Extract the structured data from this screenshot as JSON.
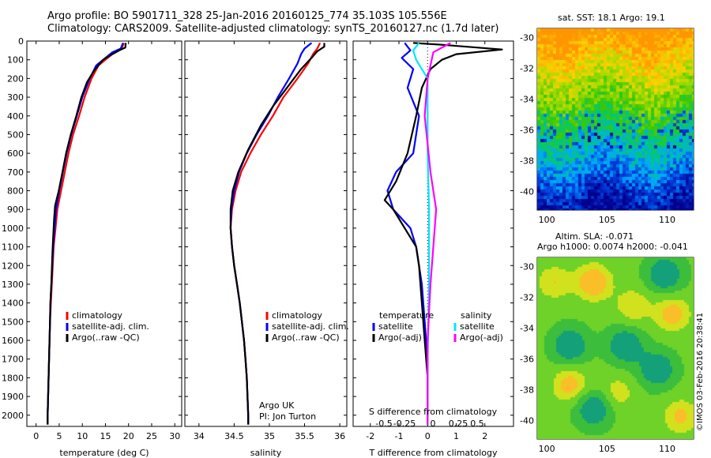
{
  "header": {
    "line1": "Argo profile: BO 5901711_328 25-Jan-2016 20160125_774 35.103S 105.556E",
    "line2": "Climatology: CARS2009. Satellite-adjusted climatology: synTS_20160127.nc (1.7d later)"
  },
  "colors": {
    "climatology": "#ff0000",
    "satellite": "#0000ff",
    "argo": "#000000",
    "sat_salinity": "#00e5ff",
    "argo_salinity": "#ff00ff"
  },
  "depth_axis": {
    "ticks": [
      0,
      100,
      200,
      300,
      400,
      500,
      600,
      700,
      800,
      900,
      1000,
      1100,
      1200,
      1300,
      1400,
      1500,
      1600,
      1700,
      1800,
      1900,
      2000
    ],
    "range": [
      0,
      2060
    ]
  },
  "temperature_panel": {
    "xlabel": "temperature (deg C)",
    "xticks": [
      0,
      5,
      10,
      15,
      20,
      25,
      30
    ],
    "xlim": [
      -2,
      31.5
    ],
    "legend": [
      "climatology",
      "satellite-adj. clim.",
      "Argo(..raw -QC)"
    ]
  },
  "salinity_panel": {
    "xlabel": "salinity",
    "xticks": [
      34,
      34.5,
      35,
      35.5,
      36
    ],
    "xtick_labels": [
      "34",
      "34.5",
      "35",
      "35.5",
      "36"
    ],
    "xlim": [
      33.8,
      36.1
    ],
    "legend": [
      "climatology",
      "satellite-adj. clim.",
      "Argo(..raw -QC)"
    ],
    "note_line1": "Argo UK",
    "note_line2": "PI: Jon Turton"
  },
  "difference_panel": {
    "xlabel": "T difference from climatology",
    "top_label": "S difference from climatology",
    "xticks": [
      -2,
      -1,
      0,
      1,
      2
    ],
    "xlim": [
      -2.6,
      3.0
    ],
    "s_ticks": [
      -0.5,
      -0.25,
      0,
      0.25,
      0.5
    ],
    "s_tick_labels": [
      "-0.5",
      "-0.25",
      "0",
      "0.25",
      "0.5"
    ],
    "legend_temperature_title": "temperature",
    "legend_salinity_title": "salinity",
    "legend_temperature": [
      "satellite",
      "Argo(-adj)"
    ],
    "legend_salinity": [
      "satellite",
      "Argo(-adj)"
    ]
  },
  "sst_map": {
    "title": "sat. SST: 18.1  Argo: 19.1",
    "yticks": [
      -30,
      -32,
      -34,
      -36,
      -38,
      -40
    ],
    "xticks": [
      100,
      105,
      110
    ],
    "lat_range": [
      -41.2,
      -29.4
    ],
    "lon_range": [
      99.2,
      112.2
    ]
  },
  "sla_map": {
    "title_line1": "Altim. SLA: -0.071",
    "title_line2": "Argo h1000: 0.0074 h2000: -0.041",
    "yticks": [
      -30,
      -32,
      -34,
      -36,
      -38,
      -40
    ],
    "xticks": [
      100,
      105,
      110
    ],
    "lat_range": [
      -41.2,
      -29.4
    ],
    "lon_range": [
      99.2,
      112.2
    ]
  },
  "credit": "©IMOS 03-Feb-2016 20:38:41",
  "chart_data": [
    {
      "type": "line",
      "xlabel": "temperature (deg C)",
      "ylim": [
        0,
        2060
      ],
      "xlim": [
        -2,
        31.5
      ],
      "series": [
        {
          "name": "climatology",
          "points": [
            [
              19.0,
              10
            ],
            [
              18.5,
              40
            ],
            [
              17.0,
              60
            ],
            [
              15.5,
              90
            ],
            [
              13.5,
              130
            ],
            [
              12.0,
              200
            ],
            [
              10.5,
              300
            ],
            [
              9.3,
              400
            ],
            [
              8.0,
              500
            ],
            [
              7.0,
              600
            ],
            [
              6.2,
              700
            ],
            [
              5.4,
              800
            ],
            [
              4.6,
              900
            ],
            [
              4.2,
              1000
            ],
            [
              3.8,
              1100
            ],
            [
              3.6,
              1200
            ],
            [
              3.4,
              1300
            ],
            [
              3.2,
              1400
            ],
            [
              3.0,
              1500
            ],
            [
              2.9,
              1600
            ],
            [
              2.8,
              1700
            ],
            [
              2.7,
              1800
            ],
            [
              2.6,
              1900
            ],
            [
              2.5,
              2000
            ],
            [
              2.5,
              2050
            ]
          ]
        },
        {
          "name": "satellite-adj. clim.",
          "points": [
            [
              18.8,
              10
            ],
            [
              18.3,
              40
            ],
            [
              16.5,
              60
            ],
            [
              15.0,
              90
            ],
            [
              13.0,
              130
            ],
            [
              11.6,
              200
            ],
            [
              10.0,
              300
            ],
            [
              8.8,
              400
            ],
            [
              7.6,
              500
            ],
            [
              6.6,
              600
            ],
            [
              5.8,
              700
            ],
            [
              5.0,
              800
            ],
            [
              4.3,
              900
            ],
            [
              4.0,
              1000
            ],
            [
              3.7,
              1100
            ],
            [
              3.5,
              1200
            ],
            [
              3.3,
              1300
            ],
            [
              3.1,
              1400
            ],
            [
              3.0,
              1500
            ],
            [
              2.9,
              1600
            ],
            [
              2.8,
              1700
            ],
            [
              2.7,
              1800
            ],
            [
              2.6,
              1900
            ],
            [
              2.5,
              2000
            ],
            [
              2.5,
              2050
            ]
          ]
        },
        {
          "name": "Argo(..raw -QC)",
          "points": [
            [
              19.4,
              10
            ],
            [
              19.3,
              35
            ],
            [
              18.0,
              50
            ],
            [
              16.5,
              70
            ],
            [
              14.5,
              100
            ],
            [
              12.5,
              160
            ],
            [
              11.0,
              220
            ],
            [
              9.8,
              300
            ],
            [
              8.7,
              400
            ],
            [
              7.5,
              500
            ],
            [
              6.5,
              600
            ],
            [
              5.7,
              700
            ],
            [
              4.9,
              800
            ],
            [
              4.1,
              880
            ],
            [
              3.9,
              950
            ],
            [
              3.7,
              1050
            ],
            [
              3.5,
              1150
            ],
            [
              3.3,
              1300
            ],
            [
              3.1,
              1400
            ],
            [
              3.0,
              1500
            ],
            [
              2.9,
              1600
            ],
            [
              2.8,
              1700
            ],
            [
              2.7,
              1800
            ],
            [
              2.6,
              1900
            ],
            [
              2.5,
              2000
            ],
            [
              2.5,
              2050
            ]
          ]
        }
      ]
    },
    {
      "type": "line",
      "xlabel": "salinity",
      "ylim": [
        0,
        2060
      ],
      "xlim": [
        33.8,
        36.1
      ],
      "series": [
        {
          "name": "climatology",
          "points": [
            [
              35.72,
              10
            ],
            [
              35.68,
              40
            ],
            [
              35.62,
              70
            ],
            [
              35.55,
              120
            ],
            [
              35.4,
              200
            ],
            [
              35.2,
              300
            ],
            [
              35.05,
              400
            ],
            [
              34.88,
              500
            ],
            [
              34.73,
              600
            ],
            [
              34.6,
              700
            ],
            [
              34.52,
              800
            ],
            [
              34.47,
              900
            ],
            [
              34.45,
              1000
            ],
            [
              34.47,
              1100
            ],
            [
              34.5,
              1200
            ],
            [
              34.54,
              1300
            ],
            [
              34.58,
              1400
            ],
            [
              34.61,
              1500
            ],
            [
              34.64,
              1600
            ],
            [
              34.66,
              1700
            ],
            [
              34.68,
              1800
            ],
            [
              34.69,
              1900
            ],
            [
              34.7,
              2000
            ],
            [
              34.7,
              2050
            ]
          ]
        },
        {
          "name": "satellite-adj. clim.",
          "points": [
            [
              35.6,
              10
            ],
            [
              35.5,
              40
            ],
            [
              35.45,
              70
            ],
            [
              35.4,
              120
            ],
            [
              35.28,
              200
            ],
            [
              35.12,
              300
            ],
            [
              34.98,
              400
            ],
            [
              34.82,
              500
            ],
            [
              34.68,
              600
            ],
            [
              34.57,
              700
            ],
            [
              34.5,
              800
            ],
            [
              34.46,
              900
            ],
            [
              34.45,
              1000
            ],
            [
              34.47,
              1100
            ],
            [
              34.5,
              1200
            ],
            [
              34.54,
              1300
            ],
            [
              34.58,
              1400
            ],
            [
              34.61,
              1500
            ],
            [
              34.64,
              1600
            ],
            [
              34.66,
              1700
            ],
            [
              34.68,
              1800
            ],
            [
              34.69,
              1900
            ],
            [
              34.7,
              2000
            ],
            [
              34.7,
              2050
            ]
          ]
        },
        {
          "name": "Argo(..raw -QC)",
          "points": [
            [
              35.78,
              10
            ],
            [
              35.78,
              30
            ],
            [
              35.68,
              55
            ],
            [
              35.6,
              90
            ],
            [
              35.45,
              150
            ],
            [
              35.25,
              250
            ],
            [
              35.05,
              350
            ],
            [
              34.88,
              450
            ],
            [
              34.7,
              580
            ],
            [
              34.56,
              700
            ],
            [
              34.48,
              800
            ],
            [
              34.45,
              900
            ],
            [
              34.45,
              1000
            ],
            [
              34.47,
              1100
            ],
            [
              34.5,
              1200
            ],
            [
              34.54,
              1300
            ],
            [
              34.58,
              1400
            ],
            [
              34.61,
              1500
            ],
            [
              34.64,
              1600
            ],
            [
              34.66,
              1700
            ],
            [
              34.68,
              1800
            ],
            [
              34.69,
              1900
            ],
            [
              34.7,
              2000
            ],
            [
              34.7,
              2050
            ]
          ]
        }
      ]
    },
    {
      "type": "line",
      "xlabel": "T difference from climatology",
      "ylim": [
        0,
        2060
      ],
      "xlim": [
        -2.6,
        3.0
      ],
      "series": [
        {
          "name": "temperature satellite",
          "points": [
            [
              -0.8,
              10
            ],
            [
              -0.6,
              50
            ],
            [
              -0.9,
              90
            ],
            [
              -0.5,
              150
            ],
            [
              -0.7,
              250
            ],
            [
              -0.3,
              400
            ],
            [
              -0.5,
              600
            ],
            [
              -1.1,
              700
            ],
            [
              -1.4,
              800
            ],
            [
              -1.2,
              900
            ],
            [
              -0.6,
              1000
            ],
            [
              -0.4,
              1100
            ],
            [
              -0.2,
              1300
            ],
            [
              -0.1,
              1500
            ],
            [
              0,
              1700
            ],
            [
              0,
              2050
            ]
          ]
        },
        {
          "name": "temperature Argo(-adj)",
          "points": [
            [
              -0.5,
              10
            ],
            [
              0.5,
              20
            ],
            [
              2.6,
              45
            ],
            [
              1.0,
              70
            ],
            [
              0.5,
              100
            ],
            [
              0.1,
              150
            ],
            [
              -0.2,
              250
            ],
            [
              -0.4,
              400
            ],
            [
              -0.7,
              600
            ],
            [
              -1.1,
              750
            ],
            [
              -1.5,
              850
            ],
            [
              -1.2,
              900
            ],
            [
              -0.8,
              1000
            ],
            [
              -0.4,
              1100
            ],
            [
              -0.3,
              1200
            ],
            [
              -0.2,
              1400
            ],
            [
              -0.1,
              1600
            ],
            [
              0,
              1800
            ],
            [
              0,
              2050
            ]
          ]
        },
        {
          "name": "salinity satellite",
          "points": [
            [
              -0.3,
              10
            ],
            [
              -0.5,
              50
            ],
            [
              -0.4,
              100
            ],
            [
              0,
              200
            ],
            [
              0,
              600
            ],
            [
              0.05,
              900
            ],
            [
              0.05,
              1300
            ],
            [
              0,
              1700
            ],
            [
              0,
              2050
            ]
          ]
        },
        {
          "name": "salinity Argo(-adj)",
          "points": [
            [
              0.8,
              10
            ],
            [
              0.2,
              60
            ],
            [
              0,
              200
            ],
            [
              -0.1,
              400
            ],
            [
              0.1,
              700
            ],
            [
              0.3,
              900
            ],
            [
              0.2,
              1100
            ],
            [
              0.1,
              1300
            ],
            [
              0,
              1600
            ],
            [
              0,
              2050
            ]
          ]
        }
      ]
    },
    {
      "type": "heatmap",
      "title": "sat. SST: 18.1  Argo: 19.1",
      "yticks": [
        -30,
        -32,
        -34,
        -36,
        -38,
        -40
      ],
      "xticks": [
        100,
        105,
        110
      ]
    },
    {
      "type": "heatmap",
      "title": "Altim. SLA: -0.071",
      "yticks": [
        -30,
        -32,
        -34,
        -36,
        -38,
        -40
      ],
      "xticks": [
        100,
        105,
        110
      ]
    }
  ]
}
